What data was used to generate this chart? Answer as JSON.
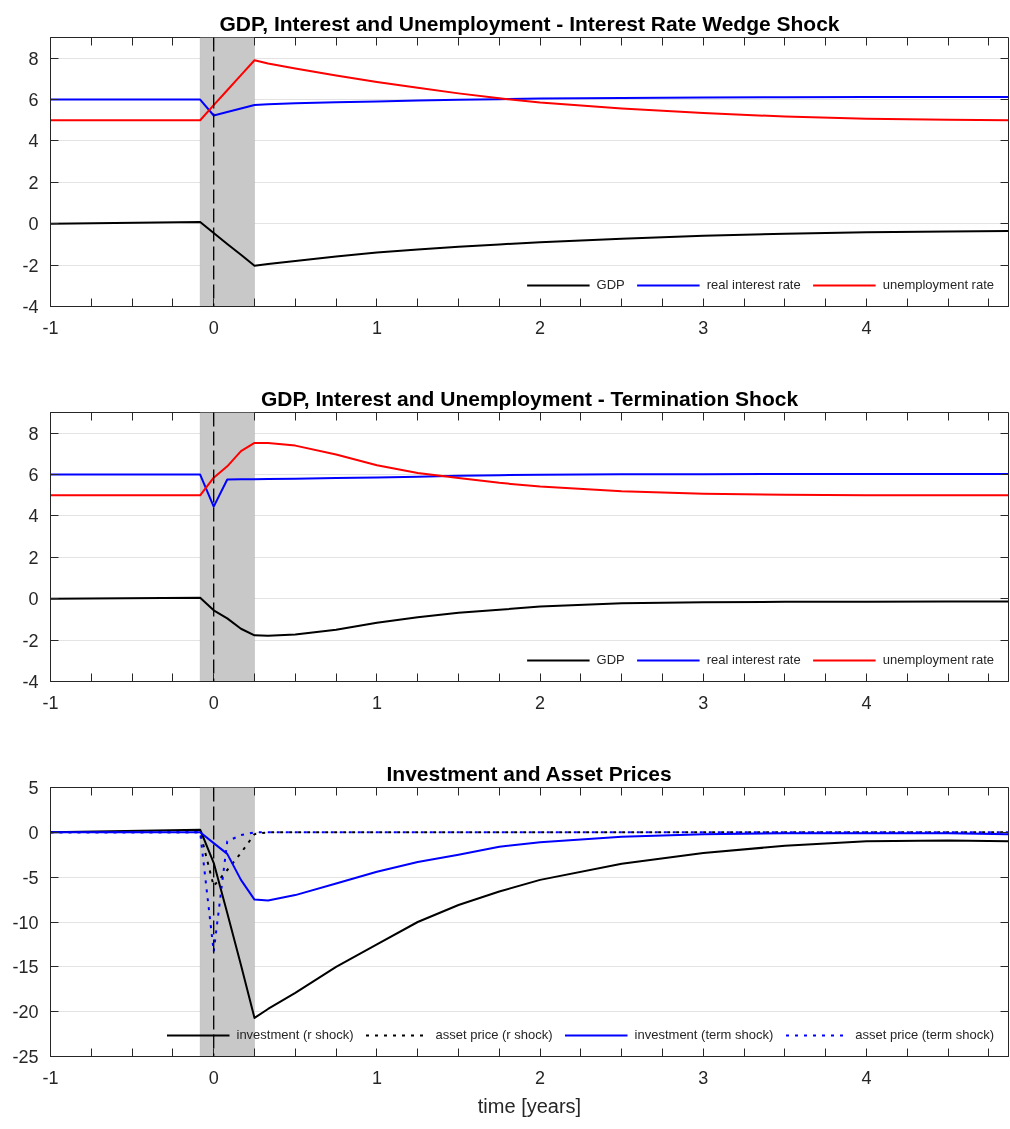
{
  "chart_data": [
    {
      "type": "line",
      "title": "GDP, Interest and Unemployment - Interest Rate Wedge Shock",
      "x": [
        -1,
        -0.083,
        0,
        0.083,
        0.167,
        0.25,
        0.333,
        0.5,
        0.75,
        1,
        1.25,
        1.5,
        1.75,
        2,
        2.5,
        3,
        3.5,
        4,
        4.5,
        4.87
      ],
      "series": [
        {
          "name": "GDP",
          "color": "#000000",
          "values": [
            0,
            0.08,
            -0.45,
            -0.98,
            -1.5,
            -2.03,
            -1.95,
            -1.8,
            -1.58,
            -1.39,
            -1.24,
            -1.11,
            -1.0,
            -0.89,
            -0.72,
            -0.58,
            -0.48,
            -0.41,
            -0.37,
            -0.35
          ]
        },
        {
          "name": "real interest rate",
          "color": "#0000ff",
          "values": [
            6,
            6,
            5.23,
            5.4,
            5.57,
            5.74,
            5.77,
            5.82,
            5.87,
            5.91,
            5.95,
            5.99,
            6.02,
            6.05,
            6.08,
            6.1,
            6.11,
            6.12,
            6.12,
            6.12
          ]
        },
        {
          "name": "unemployment rate",
          "color": "#ff0000",
          "values": [
            5,
            5,
            5.73,
            6.45,
            7.18,
            7.9,
            7.74,
            7.5,
            7.16,
            6.85,
            6.57,
            6.3,
            6.06,
            5.86,
            5.57,
            5.35,
            5.18,
            5.07,
            5.02,
            5.0
          ]
        }
      ],
      "xlim": [
        -1,
        4.87
      ],
      "ylim": [
        -4,
        9
      ],
      "xticks": [
        -1,
        {
          "value": -0.75,
          "label": null
        },
        {
          "value": -0.5,
          "label": null
        },
        {
          "value": -0.25,
          "label": null
        },
        0,
        {
          "value": 0.25,
          "label": null
        },
        {
          "value": 0.5,
          "label": null
        },
        {
          "value": 0.75,
          "label": null
        },
        1,
        {
          "value": 1.25,
          "label": null
        },
        {
          "value": 1.5,
          "label": null
        },
        {
          "value": 1.75,
          "label": null
        },
        2,
        {
          "value": 2.25,
          "label": null
        },
        {
          "value": 2.5,
          "label": null
        },
        {
          "value": 2.75,
          "label": null
        },
        3,
        {
          "value": 3.25,
          "label": null
        },
        {
          "value": 3.5,
          "label": null
        },
        {
          "value": 3.75,
          "label": null
        },
        4,
        {
          "value": 4.25,
          "label": null
        },
        {
          "value": 4.5,
          "label": null
        },
        {
          "value": 4.75,
          "label": null
        }
      ],
      "yticks": [
        -4,
        -2,
        0,
        2,
        4,
        6,
        8
      ],
      "grid": "y",
      "legend": "bottom right",
      "ref_lines": [
        {
          "axis": "x",
          "value": 0,
          "color": "#000000",
          "line_style": "dashed"
        }
      ],
      "bands": [
        {
          "axis": "x",
          "from": -0.083,
          "to": 0.25,
          "color": "#c8c8c8"
        }
      ]
    },
    {
      "type": "line",
      "title": "GDP, Interest and Unemployment - Termination Shock",
      "x": [
        -1,
        -0.083,
        0,
        0.083,
        0.167,
        0.25,
        0.333,
        0.5,
        0.75,
        1,
        1.25,
        1.5,
        1.75,
        2,
        2.5,
        3,
        3.5,
        4,
        4.5,
        4.87
      ],
      "series": [
        {
          "name": "GDP",
          "color": "#000000",
          "values": [
            0,
            0.05,
            -0.56,
            -0.95,
            -1.45,
            -1.77,
            -1.79,
            -1.73,
            -1.5,
            -1.16,
            -0.89,
            -0.68,
            -0.53,
            -0.38,
            -0.22,
            -0.17,
            -0.15,
            -0.14,
            -0.13,
            -0.13
          ]
        },
        {
          "name": "real interest rate",
          "color": "#0000ff",
          "values": [
            6,
            6,
            4.45,
            5.76,
            5.77,
            5.78,
            5.79,
            5.8,
            5.83,
            5.86,
            5.9,
            5.94,
            5.97,
            5.99,
            6.01,
            6.02,
            6.03,
            6.03,
            6.03,
            6.03
          ]
        },
        {
          "name": "unemployment rate",
          "color": "#ff0000",
          "values": [
            5,
            5,
            5.85,
            6.4,
            7.13,
            7.53,
            7.53,
            7.4,
            6.97,
            6.45,
            6.08,
            5.83,
            5.6,
            5.42,
            5.2,
            5.07,
            5.02,
            5.0,
            5.0,
            5.0
          ]
        }
      ],
      "xlim": [
        -1,
        4.87
      ],
      "ylim": [
        -4,
        9
      ],
      "xticks": [
        -1,
        {
          "value": -0.75,
          "label": null
        },
        {
          "value": -0.5,
          "label": null
        },
        {
          "value": -0.25,
          "label": null
        },
        0,
        {
          "value": 0.25,
          "label": null
        },
        {
          "value": 0.5,
          "label": null
        },
        {
          "value": 0.75,
          "label": null
        },
        1,
        {
          "value": 1.25,
          "label": null
        },
        {
          "value": 1.5,
          "label": null
        },
        {
          "value": 1.75,
          "label": null
        },
        2,
        {
          "value": 2.25,
          "label": null
        },
        {
          "value": 2.5,
          "label": null
        },
        {
          "value": 2.75,
          "label": null
        },
        3,
        {
          "value": 3.25,
          "label": null
        },
        {
          "value": 3.5,
          "label": null
        },
        {
          "value": 3.75,
          "label": null
        },
        4,
        {
          "value": 4.25,
          "label": null
        },
        {
          "value": 4.5,
          "label": null
        },
        {
          "value": 4.75,
          "label": null
        }
      ],
      "yticks": [
        -4,
        -2,
        0,
        2,
        4,
        6,
        8
      ],
      "grid": "y",
      "legend": "bottom right",
      "ref_lines": [
        {
          "axis": "x",
          "value": 0,
          "color": "#000000",
          "line_style": "dashed"
        }
      ],
      "bands": [
        {
          "axis": "x",
          "from": -0.083,
          "to": 0.25,
          "color": "#c8c8c8"
        }
      ]
    },
    {
      "type": "line",
      "title": "Investment and Asset Prices",
      "xlabel": "time [years]",
      "x": [
        -1,
        -0.083,
        0,
        0.083,
        0.167,
        0.25,
        0.333,
        0.5,
        0.75,
        1,
        1.25,
        1.5,
        1.75,
        2,
        2.5,
        3,
        3.5,
        4,
        4.5,
        4.87
      ],
      "series": [
        {
          "name": "investment (r shock)",
          "color": "#000000",
          "line_style": "solid",
          "values": [
            0,
            0.3,
            -3.4,
            -9.0,
            -14.8,
            -20.7,
            -19.7,
            -17.9,
            -15.0,
            -12.5,
            -10.0,
            -8.1,
            -6.6,
            -5.3,
            -3.5,
            -2.3,
            -1.5,
            -1.0,
            -0.9,
            -1.0
          ]
        },
        {
          "name": "asset price (r shock)",
          "color": "#000000",
          "line_style": "dotted",
          "values": [
            0,
            0,
            -6.0,
            -4.2,
            -2.3,
            -0.2,
            0,
            0,
            0,
            0,
            0,
            0,
            0,
            0,
            0,
            0,
            0,
            0,
            0,
            0
          ]
        },
        {
          "name": "investment (term shock)",
          "color": "#0000ff",
          "line_style": "solid",
          "values": [
            0,
            0,
            -1.2,
            -2.4,
            -5.3,
            -7.5,
            -7.6,
            -7.0,
            -5.7,
            -4.4,
            -3.3,
            -2.5,
            -1.6,
            -1.1,
            -0.5,
            -0.2,
            -0.1,
            -0.1,
            -0.1,
            -0.2
          ]
        },
        {
          "name": "asset price (term shock)",
          "color": "#0000ff",
          "line_style": "dotted",
          "values": [
            0,
            0,
            -13.3,
            -1.0,
            -0.3,
            0,
            0,
            0,
            0,
            0,
            0,
            0,
            0,
            0,
            0,
            0,
            0,
            0,
            0,
            0
          ]
        }
      ],
      "xlim": [
        -1,
        4.87
      ],
      "ylim": [
        -25,
        5
      ],
      "xticks": [
        -1,
        {
          "value": -0.75,
          "label": null
        },
        {
          "value": -0.5,
          "label": null
        },
        {
          "value": -0.25,
          "label": null
        },
        0,
        {
          "value": 0.25,
          "label": null
        },
        {
          "value": 0.5,
          "label": null
        },
        {
          "value": 0.75,
          "label": null
        },
        1,
        {
          "value": 1.25,
          "label": null
        },
        {
          "value": 1.5,
          "label": null
        },
        {
          "value": 1.75,
          "label": null
        },
        2,
        {
          "value": 2.25,
          "label": null
        },
        {
          "value": 2.5,
          "label": null
        },
        {
          "value": 2.75,
          "label": null
        },
        3,
        {
          "value": 3.25,
          "label": null
        },
        {
          "value": 3.5,
          "label": null
        },
        {
          "value": 3.75,
          "label": null
        },
        4,
        {
          "value": 4.25,
          "label": null
        },
        {
          "value": 4.5,
          "label": null
        },
        {
          "value": 4.75,
          "label": null
        }
      ],
      "yticks": [
        -25,
        -20,
        -15,
        -10,
        -5,
        0,
        5
      ],
      "grid": "y",
      "legend": "bottom right",
      "ref_lines": [
        {
          "axis": "x",
          "value": 0,
          "color": "#000000",
          "line_style": "dashed"
        }
      ],
      "bands": [
        {
          "axis": "x",
          "from": -0.083,
          "to": 0.25,
          "color": "#c8c8c8"
        }
      ]
    }
  ]
}
